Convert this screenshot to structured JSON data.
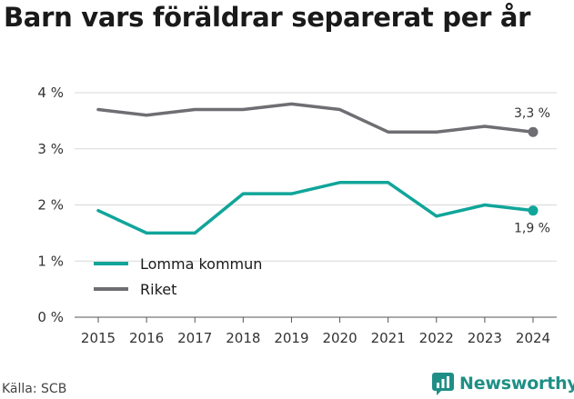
{
  "title": "Barn vars föräldrar separerat per år",
  "source": "Källa: SCB",
  "brand": "Newsworthy",
  "colors": {
    "lomma": "#11a59a",
    "riket": "#6e6e73",
    "grid": "#d9d9d9",
    "brand": "#1f8f86"
  },
  "chart_data": {
    "type": "line",
    "title": "Barn vars föräldrar separerat per år",
    "x": [
      2015,
      2016,
      2017,
      2018,
      2019,
      2020,
      2021,
      2022,
      2023,
      2024
    ],
    "x_tick_labels": [
      "2015",
      "2016",
      "2017",
      "2018",
      "2019",
      "2020",
      "2021",
      "2022",
      "2023",
      "2024"
    ],
    "ylim": [
      0,
      4
    ],
    "y_ticks": [
      0,
      1,
      2,
      3,
      4
    ],
    "y_tick_labels": [
      "0 %",
      "1 %",
      "2 %",
      "3 %",
      "4 %"
    ],
    "grid": true,
    "legend_position": "bottom-left",
    "series": [
      {
        "name": "Lomma kommun",
        "color": "#11a59a",
        "values": [
          1.9,
          1.5,
          1.5,
          2.2,
          2.2,
          2.4,
          2.4,
          1.8,
          2.0,
          1.9
        ],
        "end_label": "1,9 %"
      },
      {
        "name": "Riket",
        "color": "#6e6e73",
        "values": [
          3.7,
          3.6,
          3.7,
          3.7,
          3.8,
          3.7,
          3.3,
          3.3,
          3.4,
          3.3
        ],
        "end_label": "3,3 %"
      }
    ]
  }
}
